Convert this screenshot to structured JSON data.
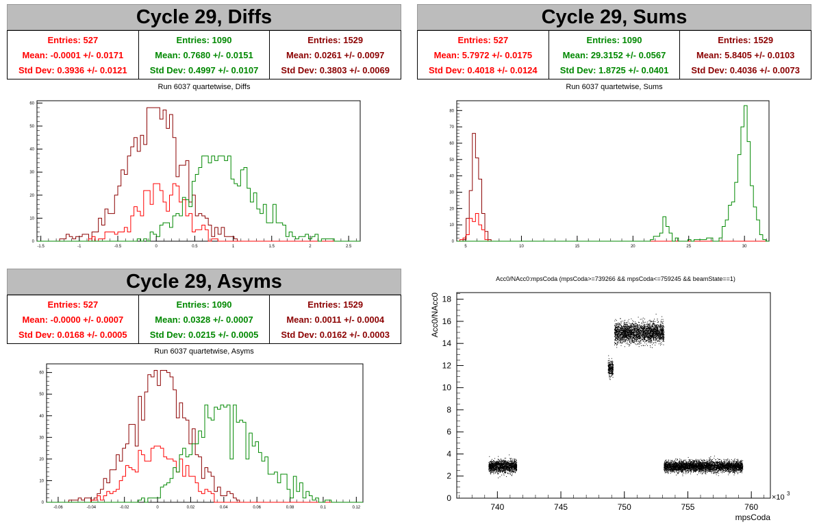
{
  "colors": {
    "red": "#ff0000",
    "green": "#008800",
    "darkred": "#8b0000",
    "black": "#000000"
  },
  "panels": {
    "diffs": {
      "title": "Cycle 29, Diffs",
      "stats": [
        {
          "entries": "Entries: 527",
          "mean": "Mean: -0.0001 +/- 0.0171",
          "std": "Std Dev: 0.3936 +/- 0.0121"
        },
        {
          "entries": "Entries: 1090",
          "mean": "Mean: 0.7680 +/- 0.0151",
          "std": "Std Dev: 0.4997 +/- 0.0107"
        },
        {
          "entries": "Entries: 1529",
          "mean": "Mean: 0.0261 +/- 0.0097",
          "std": "Std Dev: 0.3803 +/- 0.0069"
        }
      ],
      "subtitle": "Run 6037 quartetwise, Diffs"
    },
    "sums": {
      "title": "Cycle 29, Sums",
      "stats": [
        {
          "entries": "Entries: 527",
          "mean": "Mean: 5.7972 +/- 0.0175",
          "std": "Std Dev: 0.4018 +/- 0.0124"
        },
        {
          "entries": "Entries: 1090",
          "mean": "Mean: 29.3152 +/- 0.0567",
          "std": "Std Dev: 1.8725 +/- 0.0401"
        },
        {
          "entries": "Entries: 1529",
          "mean": "Mean: 5.8405 +/- 0.0103",
          "std": "Std Dev: 0.4036 +/- 0.0073"
        }
      ],
      "subtitle": "Run 6037 quartetwise, Sums"
    },
    "asyms": {
      "title": "Cycle 29, Asyms",
      "stats": [
        {
          "entries": "Entries: 527",
          "mean": "Mean: -0.0000 +/- 0.0007",
          "std": "Std Dev: 0.0168 +/- 0.0005"
        },
        {
          "entries": "Entries: 1090",
          "mean": "Mean: 0.0328 +/- 0.0007",
          "std": "Std Dev: 0.0215 +/- 0.0005"
        },
        {
          "entries": "Entries: 1529",
          "mean": "Mean: 0.0011 +/- 0.0004",
          "std": "Std Dev: 0.0162 +/- 0.0003"
        }
      ],
      "subtitle": "Run 6037 quartetwise, Asyms"
    },
    "scatter": {
      "title": "Acc0/NAcc0:mpsCoda (mpsCoda>=739266 && mpsCoda<=759245 && beamState==1)"
    }
  },
  "chart_data": [
    {
      "id": "diffs",
      "type": "step-histogram",
      "xlim": [
        -1.55,
        2.65
      ],
      "ylim": [
        0,
        61
      ],
      "xticks": [
        -1.5,
        -1,
        -0.5,
        0,
        0.5,
        1,
        1.5,
        2,
        2.5
      ],
      "xticklabels": [
        "-1.5",
        "-1",
        "-0.5",
        "0",
        "0.5",
        "1",
        "1.5",
        "2",
        "2.5"
      ],
      "yticks": [
        0,
        10,
        20,
        30,
        40,
        50,
        60
      ],
      "series": [
        {
          "color": "darkred",
          "peak": 58,
          "points": [
            [
              -1.3,
              0
            ],
            [
              -1.2,
              1
            ],
            [
              -1.0,
              2
            ],
            [
              -0.9,
              3
            ],
            [
              -0.8,
              6
            ],
            [
              -0.7,
              10
            ],
            [
              -0.6,
              15
            ],
            [
              -0.5,
              22
            ],
            [
              -0.4,
              30
            ],
            [
              -0.3,
              38
            ],
            [
              -0.2,
              45
            ],
            [
              -0.1,
              52
            ],
            [
              0.0,
              58
            ],
            [
              0.05,
              55
            ],
            [
              0.1,
              56
            ],
            [
              0.2,
              50
            ],
            [
              0.3,
              42
            ],
            [
              0.4,
              30
            ],
            [
              0.5,
              20
            ],
            [
              0.6,
              12
            ],
            [
              0.7,
              7
            ],
            [
              0.8,
              4
            ],
            [
              0.9,
              2
            ],
            [
              1.0,
              1
            ],
            [
              1.2,
              0
            ]
          ]
        },
        {
          "color": "red",
          "peak": 25,
          "points": [
            [
              -0.9,
              0
            ],
            [
              -0.8,
              1
            ],
            [
              -0.6,
              3
            ],
            [
              -0.5,
              5
            ],
            [
              -0.4,
              8
            ],
            [
              -0.3,
              12
            ],
            [
              -0.2,
              15
            ],
            [
              -0.1,
              17
            ],
            [
              0.0,
              22
            ],
            [
              0.05,
              25
            ],
            [
              0.1,
              19
            ],
            [
              0.2,
              21
            ],
            [
              0.3,
              18
            ],
            [
              0.4,
              12
            ],
            [
              0.5,
              8
            ],
            [
              0.6,
              5
            ],
            [
              0.7,
              3
            ],
            [
              0.8,
              1
            ],
            [
              0.9,
              0
            ]
          ]
        },
        {
          "color": "green",
          "peak": 37,
          "points": [
            [
              -0.3,
              0
            ],
            [
              -0.2,
              1
            ],
            [
              0.0,
              3
            ],
            [
              0.1,
              5
            ],
            [
              0.2,
              8
            ],
            [
              0.3,
              12
            ],
            [
              0.4,
              18
            ],
            [
              0.5,
              24
            ],
            [
              0.6,
              30
            ],
            [
              0.7,
              35
            ],
            [
              0.8,
              37
            ],
            [
              0.9,
              35
            ],
            [
              1.0,
              32
            ],
            [
              1.1,
              28
            ],
            [
              1.2,
              22
            ],
            [
              1.3,
              17
            ],
            [
              1.4,
              13
            ],
            [
              1.5,
              10
            ],
            [
              1.6,
              7
            ],
            [
              1.7,
              5
            ],
            [
              1.8,
              3
            ],
            [
              1.9,
              2
            ],
            [
              2.0,
              1
            ],
            [
              2.2,
              1
            ],
            [
              2.4,
              0
            ]
          ]
        }
      ]
    },
    {
      "id": "sums",
      "type": "step-histogram",
      "xlim": [
        4.2,
        32.2
      ],
      "ylim": [
        0,
        86
      ],
      "xticks": [
        5,
        10,
        15,
        20,
        25,
        30
      ],
      "xticklabels": [
        "5",
        "10",
        "15",
        "20",
        "25",
        "30"
      ],
      "yticks": [
        0,
        10,
        20,
        30,
        40,
        50,
        60,
        70,
        80
      ],
      "series": [
        {
          "color": "darkred",
          "peak": 66,
          "points": [
            [
              4.6,
              0
            ],
            [
              5.0,
              3
            ],
            [
              5.3,
              15
            ],
            [
              5.6,
              45
            ],
            [
              5.8,
              66
            ],
            [
              6.0,
              55
            ],
            [
              6.2,
              40
            ],
            [
              6.5,
              20
            ],
            [
              6.8,
              6
            ],
            [
              7.1,
              1
            ],
            [
              7.3,
              0
            ]
          ]
        },
        {
          "color": "red",
          "peak": 17,
          "points": [
            [
              4.6,
              0
            ],
            [
              5.0,
              2
            ],
            [
              5.3,
              6
            ],
            [
              5.6,
              12
            ],
            [
              5.8,
              17
            ],
            [
              6.0,
              15
            ],
            [
              6.2,
              12
            ],
            [
              6.5,
              6
            ],
            [
              6.8,
              2
            ],
            [
              7.1,
              0
            ]
          ]
        },
        {
          "color": "green",
          "peak": 83,
          "points": [
            [
              21.5,
              0
            ],
            [
              22.0,
              2
            ],
            [
              22.5,
              6
            ],
            [
              23.0,
              12
            ],
            [
              23.5,
              4
            ],
            [
              24.0,
              1
            ],
            [
              24.5,
              0
            ],
            [
              27.5,
              1
            ],
            [
              28.0,
              4
            ],
            [
              28.5,
              12
            ],
            [
              29.0,
              32
            ],
            [
              29.5,
              62
            ],
            [
              30.0,
              83
            ],
            [
              30.3,
              70
            ],
            [
              30.6,
              45
            ],
            [
              31.0,
              20
            ],
            [
              31.4,
              5
            ],
            [
              31.8,
              1
            ],
            [
              32.0,
              0
            ]
          ]
        }
      ]
    },
    {
      "id": "asyms",
      "type": "step-histogram",
      "xlim": [
        -0.067,
        0.124
      ],
      "ylim": [
        0,
        64
      ],
      "xticks": [
        -0.06,
        -0.04,
        -0.02,
        0,
        0.02,
        0.04,
        0.06,
        0.08,
        0.1,
        0.12
      ],
      "xticklabels": [
        "-0.06",
        "-0.04",
        "-0.02",
        "0",
        "0.02",
        "0.04",
        "0.06",
        "0.08",
        "0.1",
        "0.12"
      ],
      "yticks": [
        0,
        10,
        20,
        30,
        40,
        50,
        60
      ],
      "series": [
        {
          "color": "darkred",
          "peak": 61,
          "points": [
            [
              -0.055,
              0
            ],
            [
              -0.045,
              1
            ],
            [
              -0.04,
              3
            ],
            [
              -0.035,
              6
            ],
            [
              -0.03,
              10
            ],
            [
              -0.025,
              16
            ],
            [
              -0.02,
              24
            ],
            [
              -0.015,
              34
            ],
            [
              -0.01,
              44
            ],
            [
              -0.005,
              52
            ],
            [
              0.0,
              58
            ],
            [
              0.003,
              61
            ],
            [
              0.006,
              55
            ],
            [
              0.01,
              50
            ],
            [
              0.015,
              42
            ],
            [
              0.02,
              32
            ],
            [
              0.025,
              22
            ],
            [
              0.03,
              14
            ],
            [
              0.035,
              8
            ],
            [
              0.04,
              4
            ],
            [
              0.045,
              2
            ],
            [
              0.05,
              0
            ]
          ]
        },
        {
          "color": "red",
          "peak": 26,
          "points": [
            [
              -0.04,
              0
            ],
            [
              -0.035,
              2
            ],
            [
              -0.03,
              5
            ],
            [
              -0.025,
              8
            ],
            [
              -0.02,
              12
            ],
            [
              -0.015,
              16
            ],
            [
              -0.01,
              20
            ],
            [
              -0.005,
              24
            ],
            [
              0.0,
              26
            ],
            [
              0.005,
              22
            ],
            [
              0.01,
              20
            ],
            [
              0.015,
              16
            ],
            [
              0.02,
              12
            ],
            [
              0.025,
              8
            ],
            [
              0.03,
              5
            ],
            [
              0.035,
              2
            ],
            [
              0.04,
              0
            ]
          ]
        },
        {
          "color": "green",
          "peak": 45,
          "points": [
            [
              -0.015,
              0
            ],
            [
              -0.01,
              1
            ],
            [
              -0.005,
              2
            ],
            [
              0.0,
              4
            ],
            [
              0.005,
              8
            ],
            [
              0.01,
              12
            ],
            [
              0.015,
              18
            ],
            [
              0.02,
              25
            ],
            [
              0.025,
              32
            ],
            [
              0.03,
              38
            ],
            [
              0.035,
              43
            ],
            [
              0.04,
              45
            ],
            [
              0.045,
              40
            ],
            [
              0.05,
              35
            ],
            [
              0.055,
              30
            ],
            [
              0.06,
              26
            ],
            [
              0.065,
              20
            ],
            [
              0.07,
              16
            ],
            [
              0.075,
              12
            ],
            [
              0.08,
              8
            ],
            [
              0.085,
              6
            ],
            [
              0.09,
              4
            ],
            [
              0.095,
              2
            ],
            [
              0.1,
              1
            ],
            [
              0.11,
              0
            ]
          ]
        }
      ]
    },
    {
      "id": "scatter",
      "type": "scatter",
      "xlabel": "mpsCoda",
      "ylabel": "Acc0/NAcc0",
      "xscale_label": "×10",
      "xscale_exp": "3",
      "xlim": [
        736.8,
        761.5
      ],
      "ylim": [
        0,
        18.6
      ],
      "xticks": [
        740,
        745,
        750,
        755,
        760
      ],
      "xticklabels": [
        "740",
        "745",
        "750",
        "755",
        "760"
      ],
      "yticks": [
        0,
        2,
        4,
        6,
        8,
        10,
        12,
        14,
        16,
        18
      ],
      "yticklabels": [
        "0",
        "2",
        "4",
        "6",
        "8",
        "10",
        "12",
        "14",
        "16",
        "18"
      ],
      "clusters": [
        {
          "x_range": [
            739.3,
            741.5
          ],
          "y_mean": 2.9,
          "y_spread": 0.5
        },
        {
          "x_range": [
            748.7,
            749.1
          ],
          "y_mean": 11.8,
          "y_spread": 0.6
        },
        {
          "x_range": [
            749.2,
            753.1
          ],
          "y_mean": 15.0,
          "y_spread": 0.8
        },
        {
          "x_range": [
            753.1,
            759.3
          ],
          "y_mean": 2.9,
          "y_spread": 0.45
        }
      ]
    }
  ]
}
